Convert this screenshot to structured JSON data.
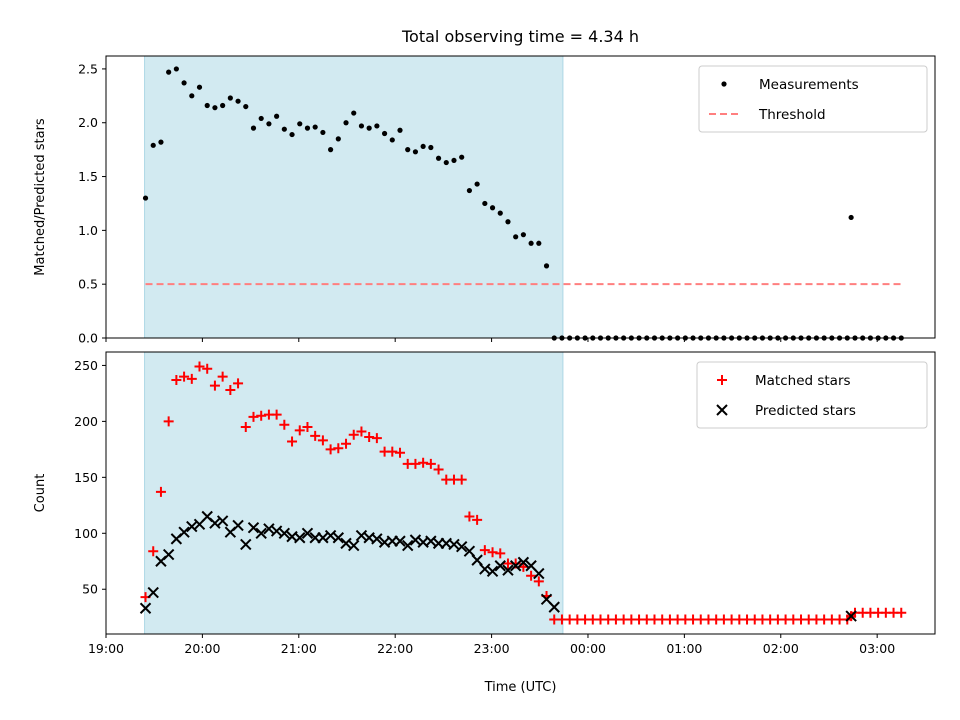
{
  "chart_data": {
    "title": "Total observing time = 4.34 h",
    "xlabel": "Time (UTC)",
    "x_unit": "hours",
    "xlim": [
      19.0,
      27.6
    ],
    "xticks": [
      {
        "value": 19,
        "label": "19:00"
      },
      {
        "value": 20,
        "label": "20:00"
      },
      {
        "value": 21,
        "label": "21:00"
      },
      {
        "value": 22,
        "label": "22:00"
      },
      {
        "value": 23,
        "label": "23:00"
      },
      {
        "value": 24,
        "label": "00:00"
      },
      {
        "value": 25,
        "label": "01:00"
      },
      {
        "value": 26,
        "label": "02:00"
      },
      {
        "value": 27,
        "label": "03:00"
      }
    ],
    "shaded_span": {
      "start": 19.4,
      "end": 23.74,
      "color": "#add8e6"
    },
    "panels": [
      {
        "type": "scatter",
        "ylabel": "Matched/Predicted stars",
        "ylim": [
          0,
          2.62
        ],
        "yticks": [
          {
            "value": 0.0,
            "label": "0.0"
          },
          {
            "value": 0.5,
            "label": "0.5"
          },
          {
            "value": 1.0,
            "label": "1.0"
          },
          {
            "value": 1.5,
            "label": "1.5"
          },
          {
            "value": 2.0,
            "label": "2.0"
          },
          {
            "value": 2.5,
            "label": "2.5"
          }
        ],
        "legend_position": "top-right",
        "series": [
          {
            "name": "Measurements",
            "marker": "dot",
            "color": "#000000",
            "x": [
              19.41,
              19.49,
              19.57,
              19.65,
              19.73,
              19.81,
              19.89,
              19.97,
              20.05,
              20.13,
              20.21,
              20.29,
              20.37,
              20.45,
              20.53,
              20.61,
              20.69,
              20.77,
              20.85,
              20.93,
              21.01,
              21.09,
              21.17,
              21.25,
              21.33,
              21.41,
              21.49,
              21.57,
              21.65,
              21.73,
              21.81,
              21.89,
              21.97,
              22.05,
              22.13,
              22.21,
              22.29,
              22.37,
              22.45,
              22.53,
              22.61,
              22.69,
              22.77,
              22.85,
              22.93,
              23.01,
              23.09,
              23.17,
              23.25,
              23.33,
              23.41,
              23.49,
              23.57,
              23.65,
              23.73,
              23.81,
              23.89,
              23.97,
              24.05,
              24.13,
              24.21,
              24.29,
              24.37,
              24.45,
              24.53,
              24.61,
              24.69,
              24.77,
              24.85,
              24.93,
              25.01,
              25.09,
              25.17,
              25.25,
              25.33,
              25.41,
              25.49,
              25.57,
              25.65,
              25.73,
              25.81,
              25.89,
              25.97,
              26.05,
              26.13,
              26.21,
              26.29,
              26.37,
              26.45,
              26.53,
              26.61,
              26.69,
              26.73,
              26.77,
              26.85,
              26.93,
              27.01,
              27.09,
              27.17,
              27.25
            ],
            "y": [
              1.3,
              1.79,
              1.82,
              2.47,
              2.5,
              2.37,
              2.25,
              2.33,
              2.16,
              2.14,
              2.16,
              2.23,
              2.2,
              2.15,
              1.95,
              2.04,
              1.99,
              2.06,
              1.94,
              1.89,
              1.99,
              1.95,
              1.96,
              1.91,
              1.75,
              1.85,
              2.0,
              2.09,
              1.97,
              1.95,
              1.97,
              1.9,
              1.84,
              1.93,
              1.75,
              1.73,
              1.78,
              1.77,
              1.67,
              1.63,
              1.65,
              1.68,
              1.37,
              1.43,
              1.25,
              1.21,
              1.16,
              1.08,
              0.94,
              0.96,
              0.88,
              0.88,
              0.67,
              0.0,
              0.0,
              0.0,
              0.0,
              0.0,
              0.0,
              0.0,
              0.0,
              0.0,
              0.0,
              0.0,
              0.0,
              0.0,
              0.0,
              0.0,
              0.0,
              0.0,
              0.0,
              0.0,
              0.0,
              0.0,
              0.0,
              0.0,
              0.0,
              0.0,
              0.0,
              0.0,
              0.0,
              0.0,
              0.0,
              0.0,
              0.0,
              0.0,
              0.0,
              0.0,
              0.0,
              0.0,
              0.0,
              0.0,
              1.12,
              0.0,
              0.0,
              0.0,
              0.0,
              0.0,
              0.0,
              0.0
            ]
          },
          {
            "name": "Threshold",
            "marker": "dashed-line",
            "color": "#ff7f7f",
            "x": [
              19.41,
              27.25
            ],
            "y": [
              0.5,
              0.5
            ]
          }
        ]
      },
      {
        "type": "scatter",
        "ylabel": "Count",
        "ylim": [
          10,
          262
        ],
        "yticks": [
          {
            "value": 50,
            "label": "50"
          },
          {
            "value": 100,
            "label": "100"
          },
          {
            "value": 150,
            "label": "150"
          },
          {
            "value": 200,
            "label": "200"
          },
          {
            "value": 250,
            "label": "250"
          }
        ],
        "legend_position": "top-right",
        "series": [
          {
            "name": "Matched stars",
            "marker": "plus",
            "color": "#ff0000",
            "x": [
              19.41,
              19.49,
              19.57,
              19.65,
              19.73,
              19.81,
              19.89,
              19.97,
              20.05,
              20.13,
              20.21,
              20.29,
              20.37,
              20.45,
              20.53,
              20.61,
              20.69,
              20.77,
              20.85,
              20.93,
              21.01,
              21.09,
              21.17,
              21.25,
              21.33,
              21.41,
              21.49,
              21.57,
              21.65,
              21.73,
              21.81,
              21.89,
              21.97,
              22.05,
              22.13,
              22.21,
              22.29,
              22.37,
              22.45,
              22.53,
              22.61,
              22.69,
              22.77,
              22.85,
              22.93,
              23.01,
              23.09,
              23.17,
              23.25,
              23.33,
              23.41,
              23.49,
              23.57,
              23.65,
              23.73,
              23.81,
              23.89,
              23.97,
              24.05,
              24.13,
              24.21,
              24.29,
              24.37,
              24.45,
              24.53,
              24.61,
              24.69,
              24.77,
              24.85,
              24.93,
              25.01,
              25.09,
              25.17,
              25.25,
              25.33,
              25.41,
              25.49,
              25.57,
              25.65,
              25.73,
              25.81,
              25.89,
              25.97,
              26.05,
              26.13,
              26.21,
              26.29,
              26.37,
              26.45,
              26.53,
              26.61,
              26.69,
              26.73,
              26.77,
              26.85,
              26.93,
              27.01,
              27.09,
              27.17,
              27.25
            ],
            "y": [
              43,
              84,
              137,
              200,
              237,
              240,
              238,
              249,
              247,
              232,
              240,
              228,
              234,
              195,
              204,
              205,
              206,
              206,
              197,
              182,
              192,
              195,
              187,
              183,
              175,
              176,
              180,
              188,
              191,
              186,
              185,
              173,
              173,
              172,
              162,
              162,
              163,
              162,
              157,
              148,
              148,
              148,
              115,
              112,
              85,
              83,
              82,
              73,
              73,
              70,
              62,
              57,
              44,
              23,
              23,
              23,
              23,
              23,
              23,
              23,
              23,
              23,
              23,
              23,
              23,
              23,
              23,
              23,
              23,
              23,
              23,
              23,
              23,
              23,
              23,
              23,
              23,
              23,
              23,
              23,
              23,
              23,
              23,
              23,
              23,
              23,
              23,
              23,
              23,
              23,
              23,
              23,
              26,
              29,
              29,
              29,
              29,
              29,
              29,
              29
            ]
          },
          {
            "name": "Predicted stars",
            "marker": "x",
            "color": "#000000",
            "x": [
              19.41,
              19.49,
              19.57,
              19.65,
              19.73,
              19.81,
              19.89,
              19.97,
              20.05,
              20.13,
              20.21,
              20.29,
              20.37,
              20.45,
              20.53,
              20.61,
              20.69,
              20.77,
              20.85,
              20.93,
              21.01,
              21.09,
              21.17,
              21.25,
              21.33,
              21.41,
              21.49,
              21.57,
              21.65,
              21.73,
              21.81,
              21.89,
              21.97,
              22.05,
              22.13,
              22.21,
              22.29,
              22.37,
              22.45,
              22.53,
              22.61,
              22.69,
              22.77,
              22.85,
              22.93,
              23.01,
              23.09,
              23.17,
              23.25,
              23.33,
              23.41,
              23.49,
              23.57,
              23.65,
              26.73
            ],
            "y": [
              33,
              47,
              75,
              81,
              95,
              101,
              106,
              108,
              115,
              109,
              111,
              101,
              107,
              90,
              105,
              100,
              104,
              102,
              100,
              97,
              96,
              100,
              96,
              96,
              98,
              96,
              91,
              89,
              98,
              96,
              95,
              92,
              93,
              93,
              89,
              94,
              92,
              93,
              91,
              91,
              90,
              88,
              84,
              76,
              68,
              66,
              71,
              67,
              71,
              74,
              71,
              64,
              41,
              34,
              26
            ]
          }
        ]
      }
    ]
  }
}
